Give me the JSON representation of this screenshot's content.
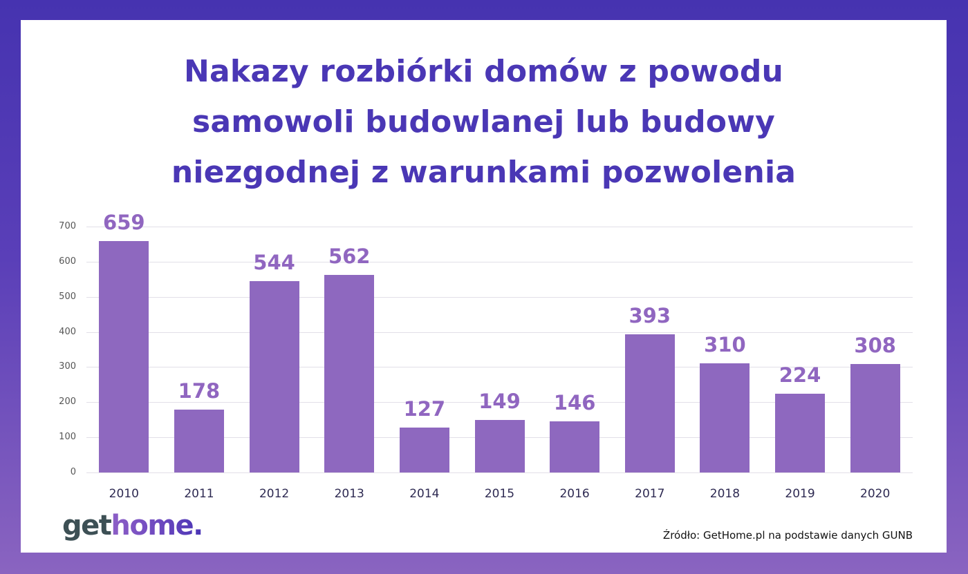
{
  "title": {
    "lines": [
      "Nakazy rozbiórki domów z powodu",
      "samowoli budowlanej lub budowy",
      "niezgodnej z warunkami pozwolenia"
    ]
  },
  "colors": {
    "background_top": "#4633b0",
    "background_bottom": "#8a64c0",
    "title": "#4a37b5",
    "bar": "#8e68bf",
    "bar_label": "#9066c0",
    "gridline": "#e2dfe8",
    "axis_text": "#2e2a52",
    "logo_get": "#3d5055",
    "logo_home_start": "#8d5fc6",
    "logo_home_end": "#4a35b5"
  },
  "logo": {
    "part1": "get",
    "part2": "home."
  },
  "source": "Źródło: GetHome.pl na podstawie danych GUNB",
  "chart_data": {
    "type": "bar",
    "title": "Nakazy rozbiórki domów z powodu samowoli budowlanej lub budowy niezgodnej z warunkami pozwolenia",
    "xlabel": "",
    "ylabel": "",
    "categories": [
      "2010",
      "2011",
      "2012",
      "2013",
      "2014",
      "2015",
      "2016",
      "2017",
      "2018",
      "2019",
      "2020"
    ],
    "values": [
      659,
      178,
      544,
      562,
      127,
      149,
      146,
      393,
      310,
      224,
      308
    ],
    "data_labels": [
      "659",
      "178",
      "544",
      "562",
      "127",
      "149",
      "146",
      "393",
      "310",
      "224",
      "308"
    ],
    "ylim": [
      0,
      700
    ],
    "yticks": [
      0,
      100,
      200,
      300,
      400,
      500,
      600,
      700
    ],
    "ytick_labels": [
      "0",
      "100",
      "200",
      "300",
      "400",
      "500",
      "600",
      "700"
    ],
    "grid": true,
    "legend": null
  }
}
